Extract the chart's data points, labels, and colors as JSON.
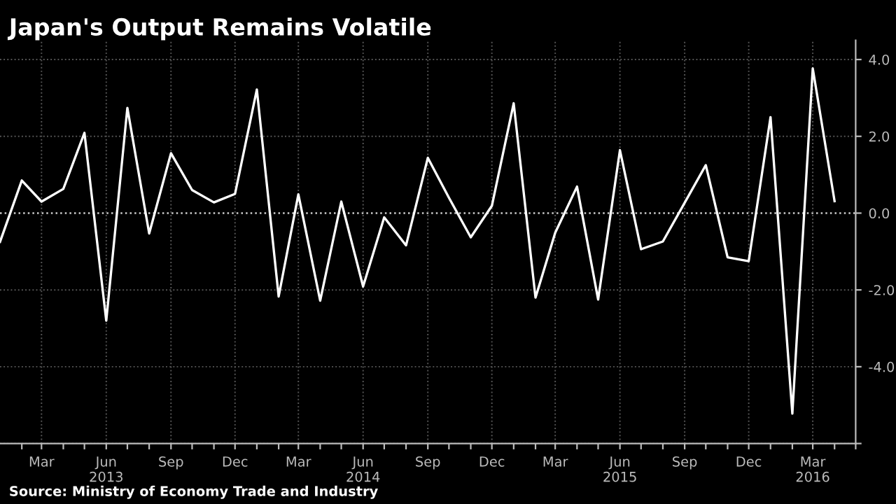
{
  "chart_data": {
    "type": "line",
    "title": "Japan's Output Remains Volatile",
    "x": [
      "2013-01",
      "2013-02",
      "2013-03",
      "2013-04",
      "2013-05",
      "2013-06",
      "2013-07",
      "2013-08",
      "2013-09",
      "2013-10",
      "2013-11",
      "2013-12",
      "2014-01",
      "2014-02",
      "2014-03",
      "2014-04",
      "2014-05",
      "2014-06",
      "2014-07",
      "2014-08",
      "2014-09",
      "2014-10",
      "2014-11",
      "2014-12",
      "2015-01",
      "2015-02",
      "2015-03",
      "2015-04",
      "2015-05",
      "2015-06",
      "2015-07",
      "2015-08",
      "2015-09",
      "2015-10",
      "2015-11",
      "2015-12",
      "2016-01",
      "2016-02",
      "2016-03",
      "2016-04"
    ],
    "series": [
      {
        "color": "#ffffff",
        "values": [
          -0.75,
          0.85,
          0.3,
          0.63,
          2.09,
          -2.8,
          2.74,
          -0.53,
          1.56,
          0.6,
          0.28,
          0.5,
          3.22,
          -2.17,
          0.49,
          -2.28,
          0.3,
          -1.91,
          -0.11,
          -0.84,
          1.44,
          0.4,
          -0.63,
          0.19,
          2.86,
          -2.2,
          -0.51,
          0.69,
          -2.25,
          1.64,
          -0.94,
          -0.74,
          0.27,
          1.25,
          -1.15,
          -1.25,
          2.5,
          -5.22,
          3.77,
          0.31
        ]
      }
    ],
    "xlim": [
      "2013-01",
      "2016-05-15"
    ],
    "xticks": [
      {
        "value": "2013-02",
        "label": null
      },
      {
        "value": "2013-03",
        "label": "Mar"
      },
      {
        "value": "2013-04",
        "label": null
      },
      {
        "value": "2013-05",
        "label": null
      },
      {
        "value": "2013-06",
        "label": "Jun\n2013"
      },
      {
        "value": "2013-07",
        "label": null
      },
      {
        "value": "2013-08",
        "label": null
      },
      {
        "value": "2013-09",
        "label": "Sep"
      },
      {
        "value": "2013-10",
        "label": null
      },
      {
        "value": "2013-11",
        "label": null
      },
      {
        "value": "2013-12",
        "label": "Dec"
      },
      {
        "value": "2014-01",
        "label": null
      },
      {
        "value": "2014-02",
        "label": null
      },
      {
        "value": "2014-03",
        "label": "Mar"
      },
      {
        "value": "2014-04",
        "label": null
      },
      {
        "value": "2014-05",
        "label": null
      },
      {
        "value": "2014-06",
        "label": "Jun\n2014"
      },
      {
        "value": "2014-07",
        "label": null
      },
      {
        "value": "2014-08",
        "label": null
      },
      {
        "value": "2014-09",
        "label": "Sep"
      },
      {
        "value": "2014-10",
        "label": null
      },
      {
        "value": "2014-11",
        "label": null
      },
      {
        "value": "2014-12",
        "label": "Dec"
      },
      {
        "value": "2015-01",
        "label": null
      },
      {
        "value": "2015-02",
        "label": null
      },
      {
        "value": "2015-03",
        "label": "Mar"
      },
      {
        "value": "2015-04",
        "label": null
      },
      {
        "value": "2015-05",
        "label": null
      },
      {
        "value": "2015-06",
        "label": "Jun\n2015"
      },
      {
        "value": "2015-07",
        "label": null
      },
      {
        "value": "2015-08",
        "label": null
      },
      {
        "value": "2015-09",
        "label": "Sep"
      },
      {
        "value": "2015-10",
        "label": null
      },
      {
        "value": "2015-11",
        "label": null
      },
      {
        "value": "2015-12",
        "label": "Dec"
      },
      {
        "value": "2016-01",
        "label": null
      },
      {
        "value": "2016-02",
        "label": null
      },
      {
        "value": "2016-03",
        "label": "Mar\n2016"
      },
      {
        "value": "2016-04",
        "label": null
      },
      {
        "value": "2016-05",
        "label": null
      }
    ],
    "ylim": [
      -6,
      4.5
    ],
    "yticks": [
      {
        "value": -6,
        "label": null
      },
      {
        "value": -4,
        "label": "-4.0"
      },
      {
        "value": -2,
        "label": "-2.0"
      },
      {
        "value": 0,
        "label": "0.0"
      },
      {
        "value": 2,
        "label": "2.0"
      },
      {
        "value": 4,
        "label": "4.0"
      }
    ],
    "grid": true,
    "ref_lines": [
      {
        "axis": "y",
        "value": 0,
        "color": "#cccccc",
        "line_style": "dotted"
      }
    ],
    "annotations": [
      "Source: Ministry of Economy Trade and Industry"
    ]
  }
}
